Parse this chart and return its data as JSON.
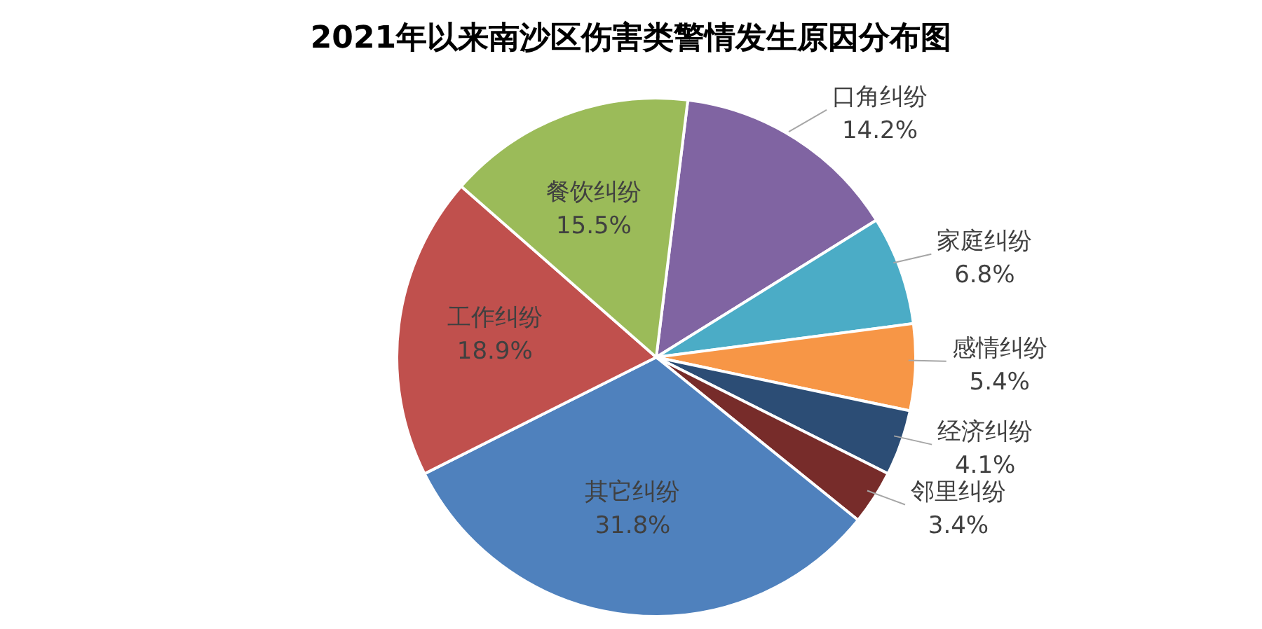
{
  "chart_data": {
    "type": "pie",
    "title": "2021年以来南沙区伤害类警情发生原因分布图",
    "categories": [
      "口角纠纷",
      "家庭纠纷",
      "感情纠纷",
      "经济纠纷",
      "邻里纠纷",
      "其它纠纷",
      "工作纠纷",
      "餐饮纠纷"
    ],
    "values": [
      14.2,
      6.8,
      5.4,
      4.1,
      3.4,
      31.8,
      18.9,
      15.5
    ],
    "value_labels": [
      "14.2%",
      "6.8%",
      "5.4%",
      "4.1%",
      "3.4%",
      "31.8%",
      "18.9%",
      "15.5%"
    ],
    "colors": [
      "#8064a2",
      "#4bacc6",
      "#f79646",
      "#2c4d75",
      "#772c2a",
      "#4f81bd",
      "#c0504d",
      "#9bbb59"
    ],
    "legend": false
  }
}
